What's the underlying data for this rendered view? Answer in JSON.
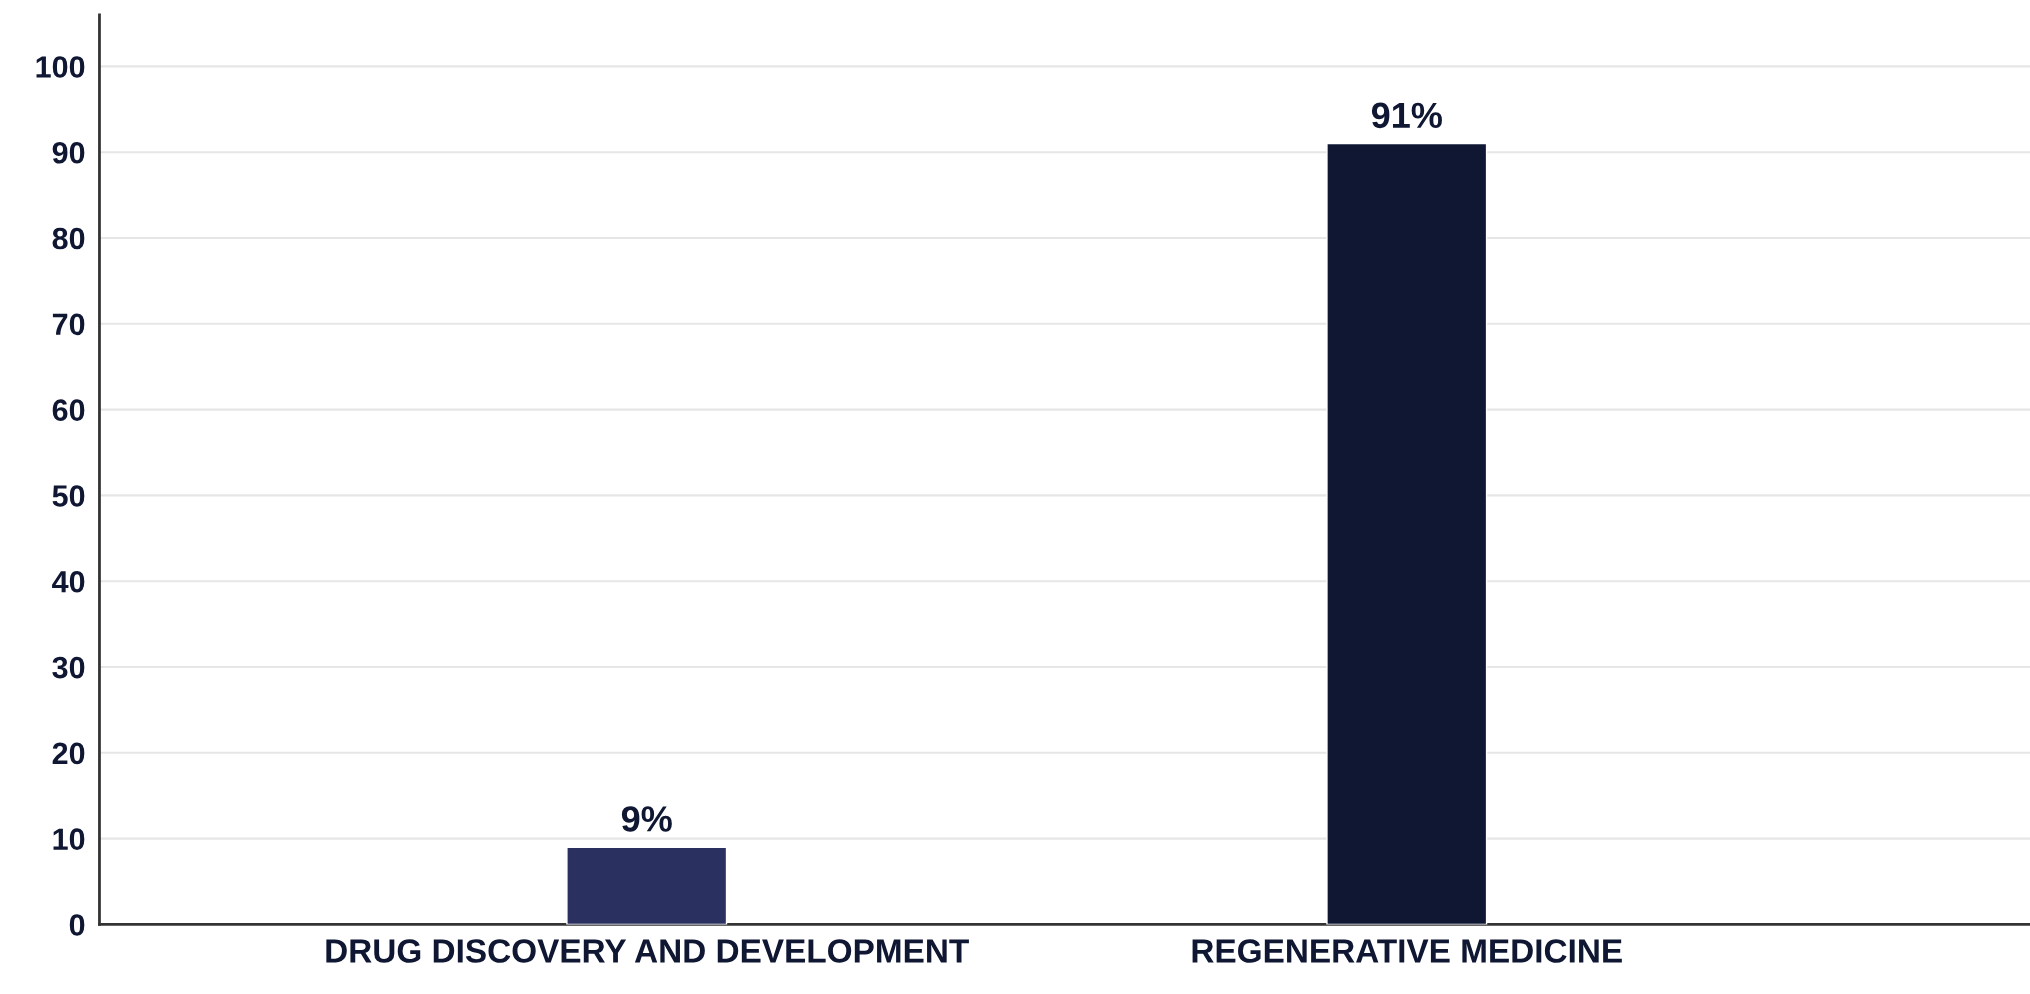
{
  "chart_data": {
    "type": "bar",
    "categories": [
      "DRUG DISCOVERY AND DEVELOPMENT",
      "REGENERATIVE MEDICINE"
    ],
    "values": [
      9,
      91
    ],
    "colors": [
      "#2a3160",
      "#0f1733"
    ],
    "ylim": [
      0,
      106
    ],
    "yticks": [
      0,
      10,
      20,
      30,
      40,
      50,
      60,
      70,
      80,
      90,
      100
    ],
    "value_labels": [
      "9%",
      "91%"
    ],
    "grid": "y"
  }
}
